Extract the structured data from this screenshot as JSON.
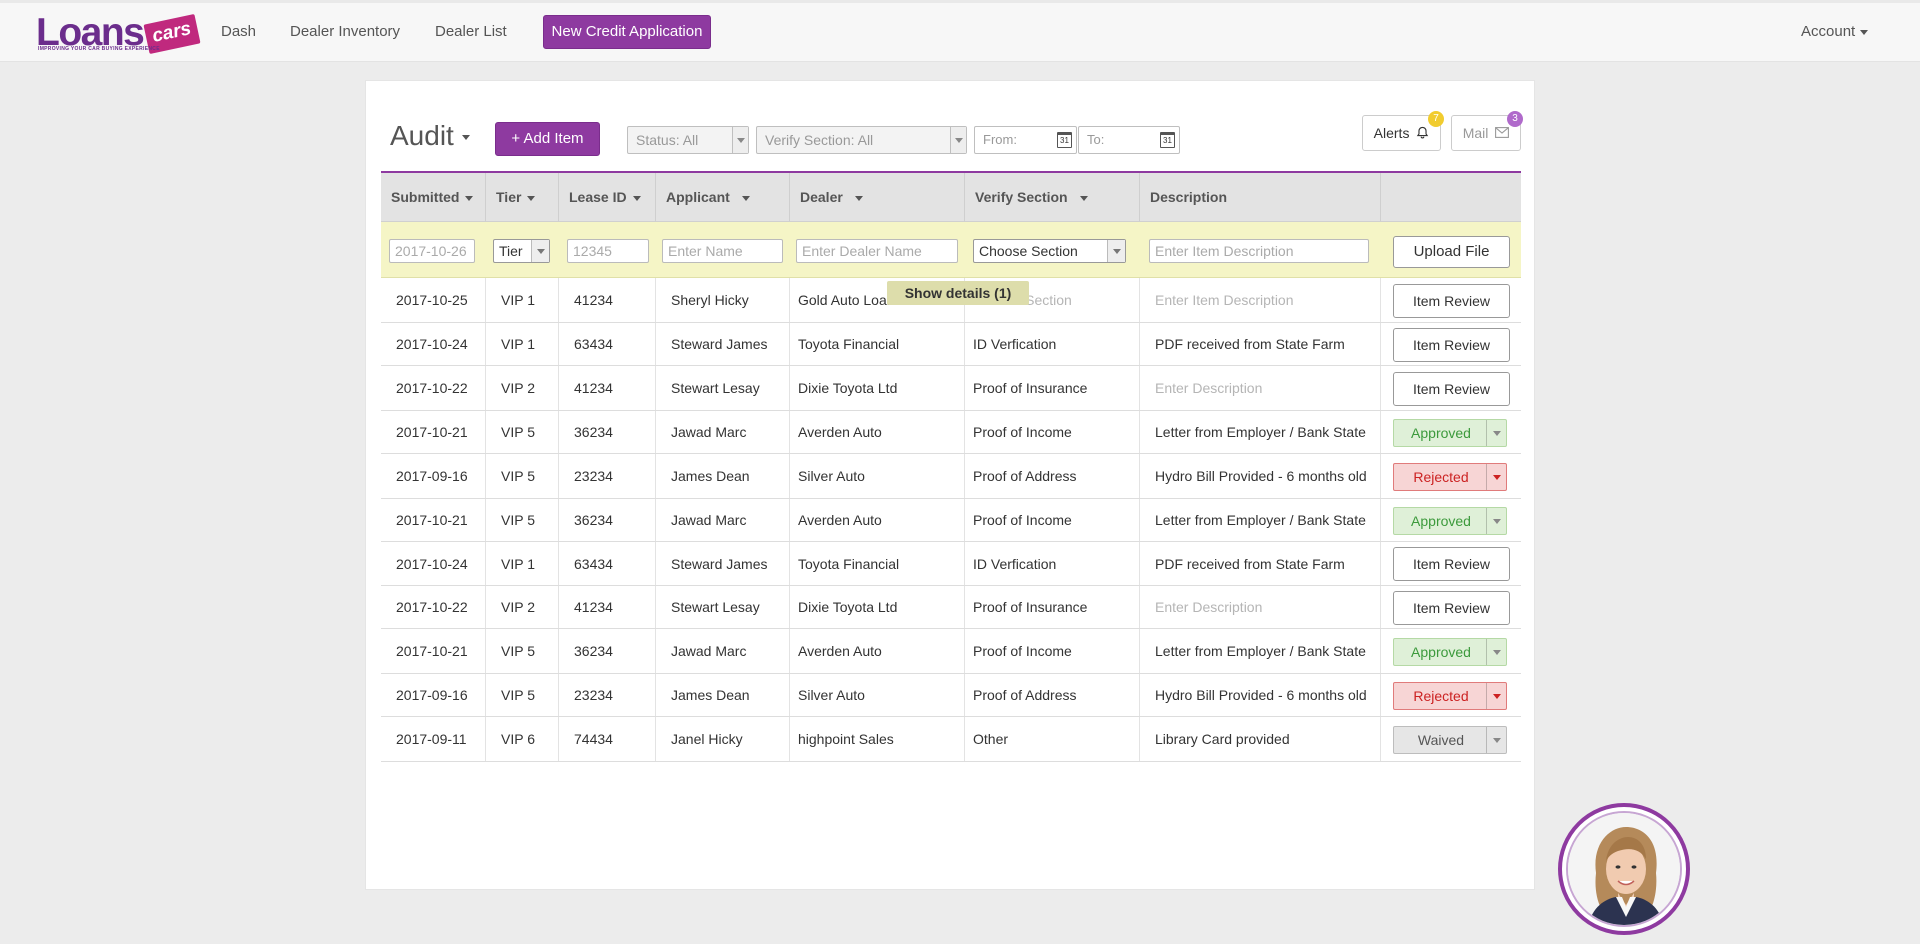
{
  "brand": {
    "logo_word": "Loans",
    "logo_tag": "cars",
    "tagline": "IMPROVING YOUR CAR BUYING EXPERIENCE"
  },
  "nav": {
    "dash": "Dash",
    "dealer_inventory": "Dealer Inventory",
    "dealer_list": "Dealer List",
    "new_credit_application": "New Credit Application",
    "account": "Account"
  },
  "toolbar": {
    "title": "Audit",
    "add_item": "+ Add Item",
    "status_select": "Status: All",
    "verify_select": "Verify Section: All",
    "from_placeholder": "From:",
    "to_placeholder": "To:",
    "calendar_day": "31",
    "alerts_label": "Alerts",
    "alerts_count": "7",
    "mail_label": "Mail",
    "mail_count": "3"
  },
  "table": {
    "headers": {
      "submitted": "Submitted",
      "tier": "Tier",
      "lease_id": "Lease ID",
      "applicant": "Applicant",
      "dealer": "Dealer",
      "verify_section": "Verify Section",
      "description": "Description"
    },
    "filters": {
      "date": "2017-10-26",
      "tier": "Tier",
      "lease_id": "12345",
      "name": "Enter Name",
      "dealer_name": "Enter Dealer Name",
      "section": "Choose Section",
      "description": "Enter Item Description",
      "upload": "Upload File"
    },
    "tooltip": "Show details (1)",
    "rows": [
      {
        "submitted": "2017-10-25",
        "tier": "VIP 1",
        "lease_id": "41234",
        "applicant": "Sheryl Hicky",
        "dealer": "Gold Auto Loans Ltd",
        "section": "Choose Section",
        "description": "Enter Item Description",
        "action": "Item Review"
      },
      {
        "submitted": "2017-10-24",
        "tier": "VIP 1",
        "lease_id": "63434",
        "applicant": "Steward James",
        "dealer": "Toyota  Financial",
        "section": "ID Verfication",
        "description": "PDF received from State Farm",
        "action": "Item Review"
      },
      {
        "submitted": "2017-10-22",
        "tier": "VIP 2",
        "lease_id": "41234",
        "applicant": "Stewart Lesay",
        "dealer": "Dixie Toyota Ltd",
        "section": "Proof of Insurance",
        "description": "Enter Description",
        "action": "Item Review"
      },
      {
        "submitted": "2017-10-21",
        "tier": "VIP 5",
        "lease_id": "36234",
        "applicant": "Jawad Marc",
        "dealer": "Averden Auto",
        "section": "Proof of Income",
        "description": "Letter from Employer / Bank State",
        "action": "Approved"
      },
      {
        "submitted": "2017-09-16",
        "tier": "VIP 5",
        "lease_id": "23234",
        "applicant": "James Dean",
        "dealer": "Silver Auto",
        "section": "Proof of Address",
        "description": "Hydro Bill Provided - 6 months old",
        "action": "Rejected"
      },
      {
        "submitted": "2017-10-21",
        "tier": "VIP 5",
        "lease_id": "36234",
        "applicant": "Jawad Marc",
        "dealer": "Averden Auto",
        "section": "Proof of Income",
        "description": "Letter from Employer / Bank State",
        "action": "Approved"
      },
      {
        "submitted": "2017-10-24",
        "tier": "VIP 1",
        "lease_id": "63434",
        "applicant": "Steward James",
        "dealer": "Toyota  Financial",
        "section": "ID Verfication",
        "description": "PDF received from State Farm",
        "action": "Item Review"
      },
      {
        "submitted": "2017-10-22",
        "tier": "VIP 2",
        "lease_id": "41234",
        "applicant": "Stewart Lesay",
        "dealer": "Dixie Toyota Ltd",
        "section": "Proof of Insurance",
        "description": "Enter Description",
        "action": "Item Review"
      },
      {
        "submitted": "2017-10-21",
        "tier": "VIP 5",
        "lease_id": "36234",
        "applicant": "Jawad Marc",
        "dealer": "Averden Auto",
        "section": "Proof of Income",
        "description": "Letter from Employer / Bank State",
        "action": "Approved"
      },
      {
        "submitted": "2017-09-16",
        "tier": "VIP 5",
        "lease_id": "23234",
        "applicant": "James Dean",
        "dealer": "Silver Auto",
        "section": "Proof of Address",
        "description": "Hydro Bill Provided - 6 months old",
        "action": "Rejected"
      },
      {
        "submitted": "2017-09-11",
        "tier": "VIP 6",
        "lease_id": "74434",
        "applicant": "Janel Hicky",
        "dealer": "highpoint Sales",
        "section": "Other",
        "description": "Library Card provided",
        "action": "Waived"
      }
    ]
  },
  "colors": {
    "brand_purple": "#8e3aa0",
    "brand_magenta": "#c0297e",
    "filter_row": "#f5f5c6",
    "approved": "#3c9a3c",
    "rejected": "#cc2222"
  }
}
